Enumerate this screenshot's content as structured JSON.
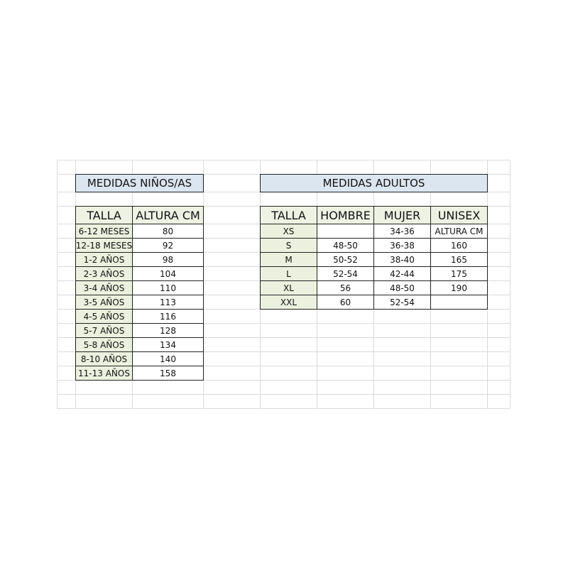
{
  "colors": {
    "title_fill": "#dce6f1",
    "label_fill": "#ebf1de",
    "border": "#222222",
    "gridline": "#dadada"
  },
  "kids": {
    "title": "MEDIDAS NIÑOS/AS",
    "headers": [
      "TALLA",
      "ALTURA CM"
    ],
    "rows": [
      [
        "6-12 MESES",
        "80"
      ],
      [
        "12-18 MESES",
        "92"
      ],
      [
        "1-2 AÑOS",
        "98"
      ],
      [
        "2-3 AÑOS",
        "104"
      ],
      [
        "3-4 AÑOS",
        "110"
      ],
      [
        "3-5 AÑOS",
        "113"
      ],
      [
        "4-5 AÑOS",
        "116"
      ],
      [
        "5-7 AÑOS",
        "128"
      ],
      [
        "5-8 AÑOS",
        "134"
      ],
      [
        "8-10 AÑOS",
        "140"
      ],
      [
        "11-13 AÑOS",
        "158"
      ]
    ]
  },
  "adults": {
    "title": "MEDIDAS ADULTOS",
    "headers": [
      "TALLA",
      "HOMBRE",
      "MUJER",
      "UNISEX"
    ],
    "rows": [
      [
        "XS",
        "",
        "34-36",
        "ALTURA CM"
      ],
      [
        "S",
        "48-50",
        "36-38",
        "160"
      ],
      [
        "M",
        "50-52",
        "38-40",
        "165"
      ],
      [
        "L",
        "52-54",
        "42-44",
        "175"
      ],
      [
        "XL",
        "56",
        "48-50",
        "190"
      ],
      [
        "XXL",
        "60",
        "52-54",
        ""
      ]
    ]
  }
}
